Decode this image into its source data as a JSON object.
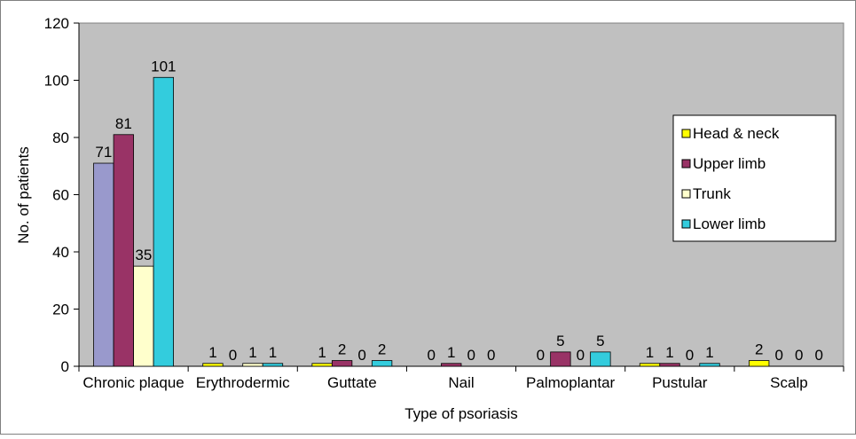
{
  "chart_data": {
    "type": "bar",
    "title": "",
    "xlabel": "Type of psoriasis",
    "ylabel": "No. of patients",
    "ylim": [
      0,
      120
    ],
    "yticks": [
      0,
      20,
      40,
      60,
      80,
      100,
      120
    ],
    "grid": false,
    "legend_position": "right",
    "categories": [
      "Chronic plaque",
      "Erythrodermic",
      "Guttate",
      "Nail",
      "Palmoplantar",
      "Pustular",
      "Scalp"
    ],
    "series": [
      {
        "name": "Head & neck",
        "values": [
          71,
          1,
          1,
          0,
          0,
          1,
          2
        ]
      },
      {
        "name": "Upper limb",
        "values": [
          81,
          0,
          2,
          1,
          5,
          1,
          0
        ]
      },
      {
        "name": "Trunk",
        "values": [
          35,
          1,
          0,
          0,
          0,
          0,
          0
        ]
      },
      {
        "name": "Lower limb",
        "values": [
          101,
          1,
          2,
          0,
          5,
          1,
          0
        ]
      }
    ],
    "colors": {
      "plot_background": "#c0c0c0",
      "chronic_plaque_bars": [
        "#9999cc",
        "#993366",
        "#ffffcc",
        "#33ccdd"
      ],
      "other_bars": [
        "#ffff00",
        "#993366",
        "#ffffcc",
        "#33ccdd"
      ],
      "legend_swatches": [
        "#ffff00",
        "#993366",
        "#ffffcc",
        "#33ccdd"
      ]
    }
  }
}
